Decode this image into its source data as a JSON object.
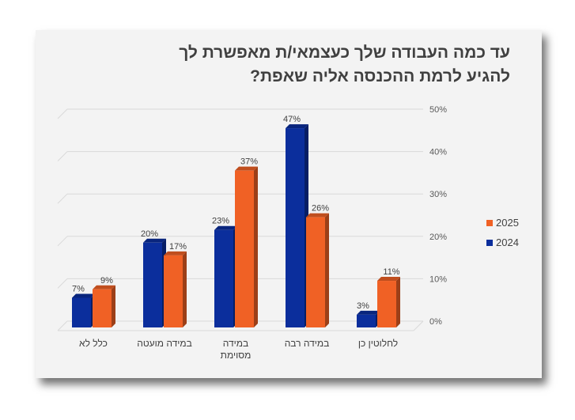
{
  "chart_data": {
    "type": "bar",
    "title_lines": [
      "עד כמה העבודה שלך כעצמאי/ת מאפשרת לך",
      "להגיע לרמת ההכנסה אליה שאפת?"
    ],
    "categories": [
      "כלל לא",
      "במידה מועטה",
      "במידה מסוימת",
      "במידה רבה",
      "לחלוטין כן"
    ],
    "category_lines": [
      [
        "כלל לא"
      ],
      [
        "במידה מועטה"
      ],
      [
        "במידה",
        "מסוימת"
      ],
      [
        "במידה רבה"
      ],
      [
        "לחלוטין כן"
      ]
    ],
    "series": [
      {
        "name": "2024",
        "values": [
          7,
          20,
          23,
          47,
          3
        ],
        "labels": [
          "7%",
          "20%",
          "23%",
          "47%",
          "3%"
        ],
        "color": "#0b2e9c"
      },
      {
        "name": "2025",
        "values": [
          9,
          17,
          37,
          26,
          11
        ],
        "labels": [
          "9%",
          "17%",
          "37%",
          "26%",
          "11%"
        ],
        "color": "#f06125"
      }
    ],
    "y_ticks": [
      "0%",
      "10%",
      "20%",
      "30%",
      "40%",
      "50%"
    ],
    "ylim": [
      0,
      50
    ],
    "y_axis_side": "right",
    "grid": true,
    "legend_position": "right"
  }
}
